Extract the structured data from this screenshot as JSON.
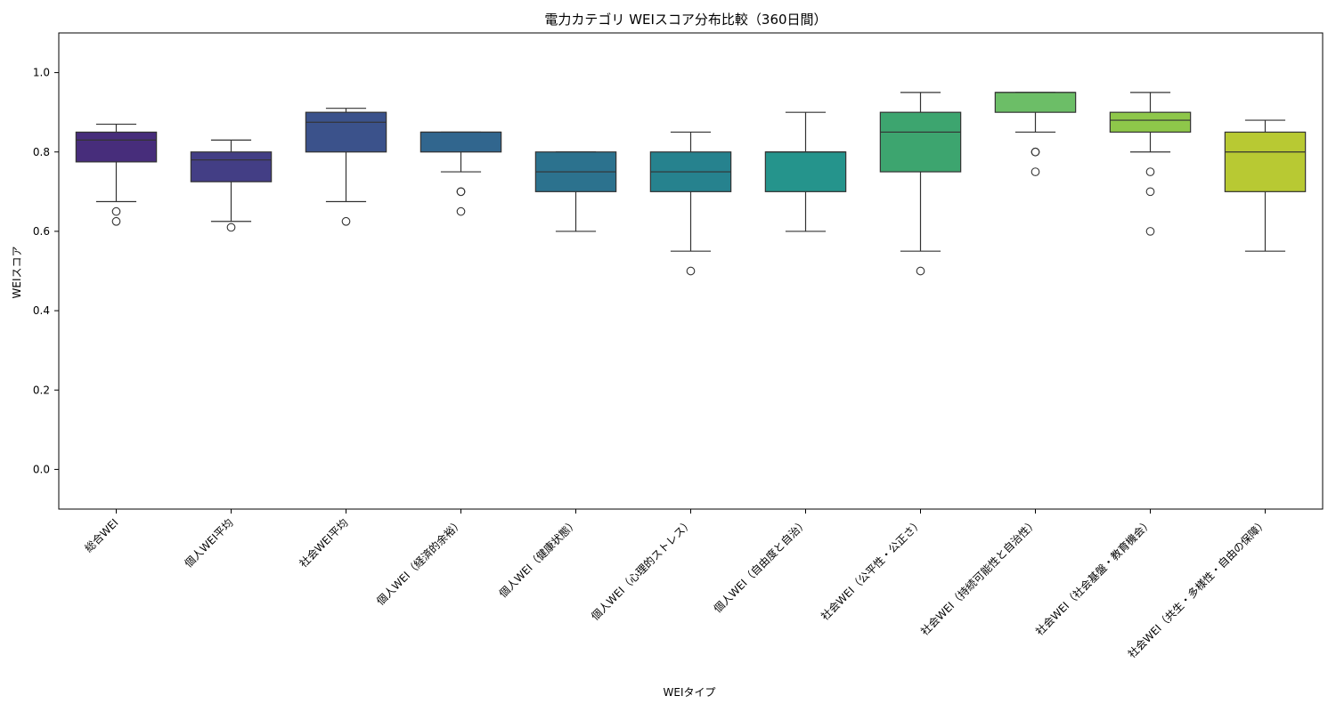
{
  "chart_data": {
    "type": "box",
    "title": "電力カテゴリ WEIスコア分布比較（360日間）",
    "xlabel": "WEIタイプ",
    "ylabel": "WEIスコア",
    "ylim": [
      -0.1,
      1.1
    ],
    "yticks": [
      "0.0",
      "0.2",
      "0.4",
      "0.6",
      "0.8",
      "1.0"
    ],
    "grid": false,
    "legend": "none",
    "categories": [
      "総合WEI",
      "個人WEI平均",
      "社会WEI平均",
      "個人WEI（経済的余裕）",
      "個人WEI（健康状態）",
      "個人WEI（心理的ストレス）",
      "個人WEI（自由度と自治）",
      "社会WEI（公平性・公正さ）",
      "社会WEI（持続可能性と自治性）",
      "社会WEI（社会基盤・教育機会）",
      "社会WEI（共生・多様性・自由の保障）"
    ],
    "boxes": [
      {
        "whisker_low": 0.675,
        "q1": 0.775,
        "median": 0.83,
        "q3": 0.85,
        "whisker_high": 0.87,
        "outliers": [
          0.65,
          0.625
        ],
        "color": "#472d7b"
      },
      {
        "whisker_low": 0.625,
        "q1": 0.725,
        "median": 0.78,
        "q3": 0.8,
        "whisker_high": 0.83,
        "outliers": [
          0.61
        ],
        "color": "#433e85"
      },
      {
        "whisker_low": 0.675,
        "q1": 0.8,
        "median": 0.875,
        "q3": 0.9,
        "whisker_high": 0.91,
        "outliers": [
          0.625
        ],
        "color": "#3b528b"
      },
      {
        "whisker_low": 0.75,
        "q1": 0.8,
        "median": 0.85,
        "q3": 0.85,
        "whisker_high": 0.85,
        "outliers": [
          0.7,
          0.7,
          0.65
        ],
        "color": "#31668e"
      },
      {
        "whisker_low": 0.6,
        "q1": 0.7,
        "median": 0.75,
        "q3": 0.8,
        "whisker_high": 0.8,
        "outliers": [],
        "color": "#2c728e"
      },
      {
        "whisker_low": 0.55,
        "q1": 0.7,
        "median": 0.75,
        "q3": 0.8,
        "whisker_high": 0.85,
        "outliers": [
          0.5
        ],
        "color": "#26828e"
      },
      {
        "whisker_low": 0.6,
        "q1": 0.7,
        "median": 0.8,
        "q3": 0.8,
        "whisker_high": 0.9,
        "outliers": [],
        "color": "#25948c"
      },
      {
        "whisker_low": 0.55,
        "q1": 0.75,
        "median": 0.85,
        "q3": 0.9,
        "whisker_high": 0.95,
        "outliers": [
          0.5
        ],
        "color": "#3da56f"
      },
      {
        "whisker_low": 0.85,
        "q1": 0.9,
        "median": 0.95,
        "q3": 0.95,
        "whisker_high": 0.95,
        "outliers": [
          0.8,
          0.8,
          0.75
        ],
        "color": "#6cbe67"
      },
      {
        "whisker_low": 0.8,
        "q1": 0.85,
        "median": 0.88,
        "q3": 0.9,
        "whisker_high": 0.95,
        "outliers": [
          0.75,
          0.7,
          0.6
        ],
        "color": "#8ec74a"
      },
      {
        "whisker_low": 0.55,
        "q1": 0.7,
        "median": 0.8,
        "q3": 0.85,
        "whisker_high": 0.88,
        "outliers": [],
        "color": "#b8c933"
      }
    ]
  }
}
